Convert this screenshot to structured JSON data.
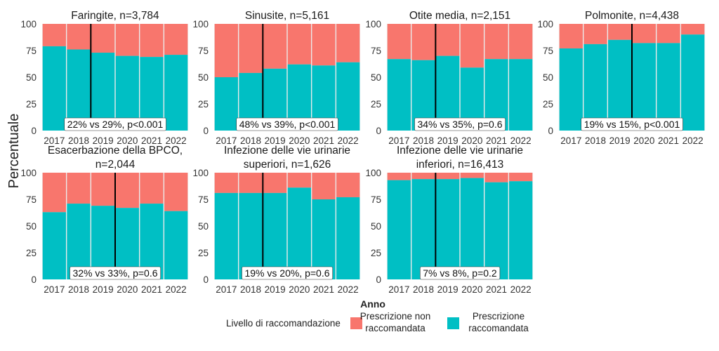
{
  "chart_data": {
    "type": "bar",
    "stacked": true,
    "ylabel": "Percentuale",
    "xlabel": "Anno",
    "ylim": [
      0,
      100
    ],
    "yticks": [
      0,
      25,
      50,
      75,
      100
    ],
    "categories": [
      "2017",
      "2018",
      "2019",
      "2020",
      "2021",
      "2022"
    ],
    "series_names": [
      "Prescrizione raccomandata",
      "Prescrizione non raccomandata"
    ],
    "colors": {
      "recommended": "#00BFC4",
      "not_recommended": "#F8766D",
      "panel_bg": "#EBEBEB",
      "divider": "#000000"
    },
    "legend": {
      "title": "Livello di raccomandazione",
      "position": "bottom",
      "items": [
        {
          "label_lines": [
            "Prescrizione non",
            "raccomandata"
          ],
          "color": "#F8766D"
        },
        {
          "label_lines": [
            "Prescrizione",
            "raccomandata"
          ],
          "color": "#00BFC4"
        }
      ]
    },
    "panels": [
      {
        "title_lines": [
          "Faringite, n=3,784"
        ],
        "recommended": [
          79,
          76,
          73,
          70,
          69,
          71
        ],
        "divider_after": 1.0,
        "annotation": "22% vs 29%, p<0.001"
      },
      {
        "title_lines": [
          "Sinusite, n=5,161"
        ],
        "recommended": [
          50,
          54,
          58,
          62,
          61,
          64
        ],
        "divider_after": 1.0,
        "annotation": "48% vs 39%, p<0.001"
      },
      {
        "title_lines": [
          "Otite media, n=2,151"
        ],
        "recommended": [
          67,
          66,
          70,
          59,
          67,
          67
        ],
        "divider_after": 1.0,
        "annotation": "34% vs 35%, p=0.6"
      },
      {
        "title_lines": [
          "Polmonite, n=4,438"
        ],
        "recommended": [
          77,
          81,
          85,
          82,
          82,
          90
        ],
        "divider_after": 2.0,
        "annotation": "19% vs 15%, p<0.001"
      },
      {
        "title_lines": [
          "Esacerbazione della BPCO,",
          "n=2,044"
        ],
        "recommended": [
          63,
          71,
          69,
          67,
          71,
          64
        ],
        "divider_after": 2.0,
        "annotation": "32% vs 33%, p=0.6"
      },
      {
        "title_lines": [
          "Infezione delle vie urinarie",
          "superiori, n=1,626"
        ],
        "recommended": [
          81,
          81,
          81,
          86,
          75,
          77
        ],
        "divider_after": 1.0,
        "annotation": "19% vs 20%, p=0.6"
      },
      {
        "title_lines": [
          "Infezione delle vie urinarie",
          "inferiori, n=16,413"
        ],
        "recommended": [
          93,
          94,
          94,
          95,
          91,
          92
        ],
        "divider_after": 1.0,
        "annotation": "7% vs 8%, p=0.2"
      }
    ]
  }
}
